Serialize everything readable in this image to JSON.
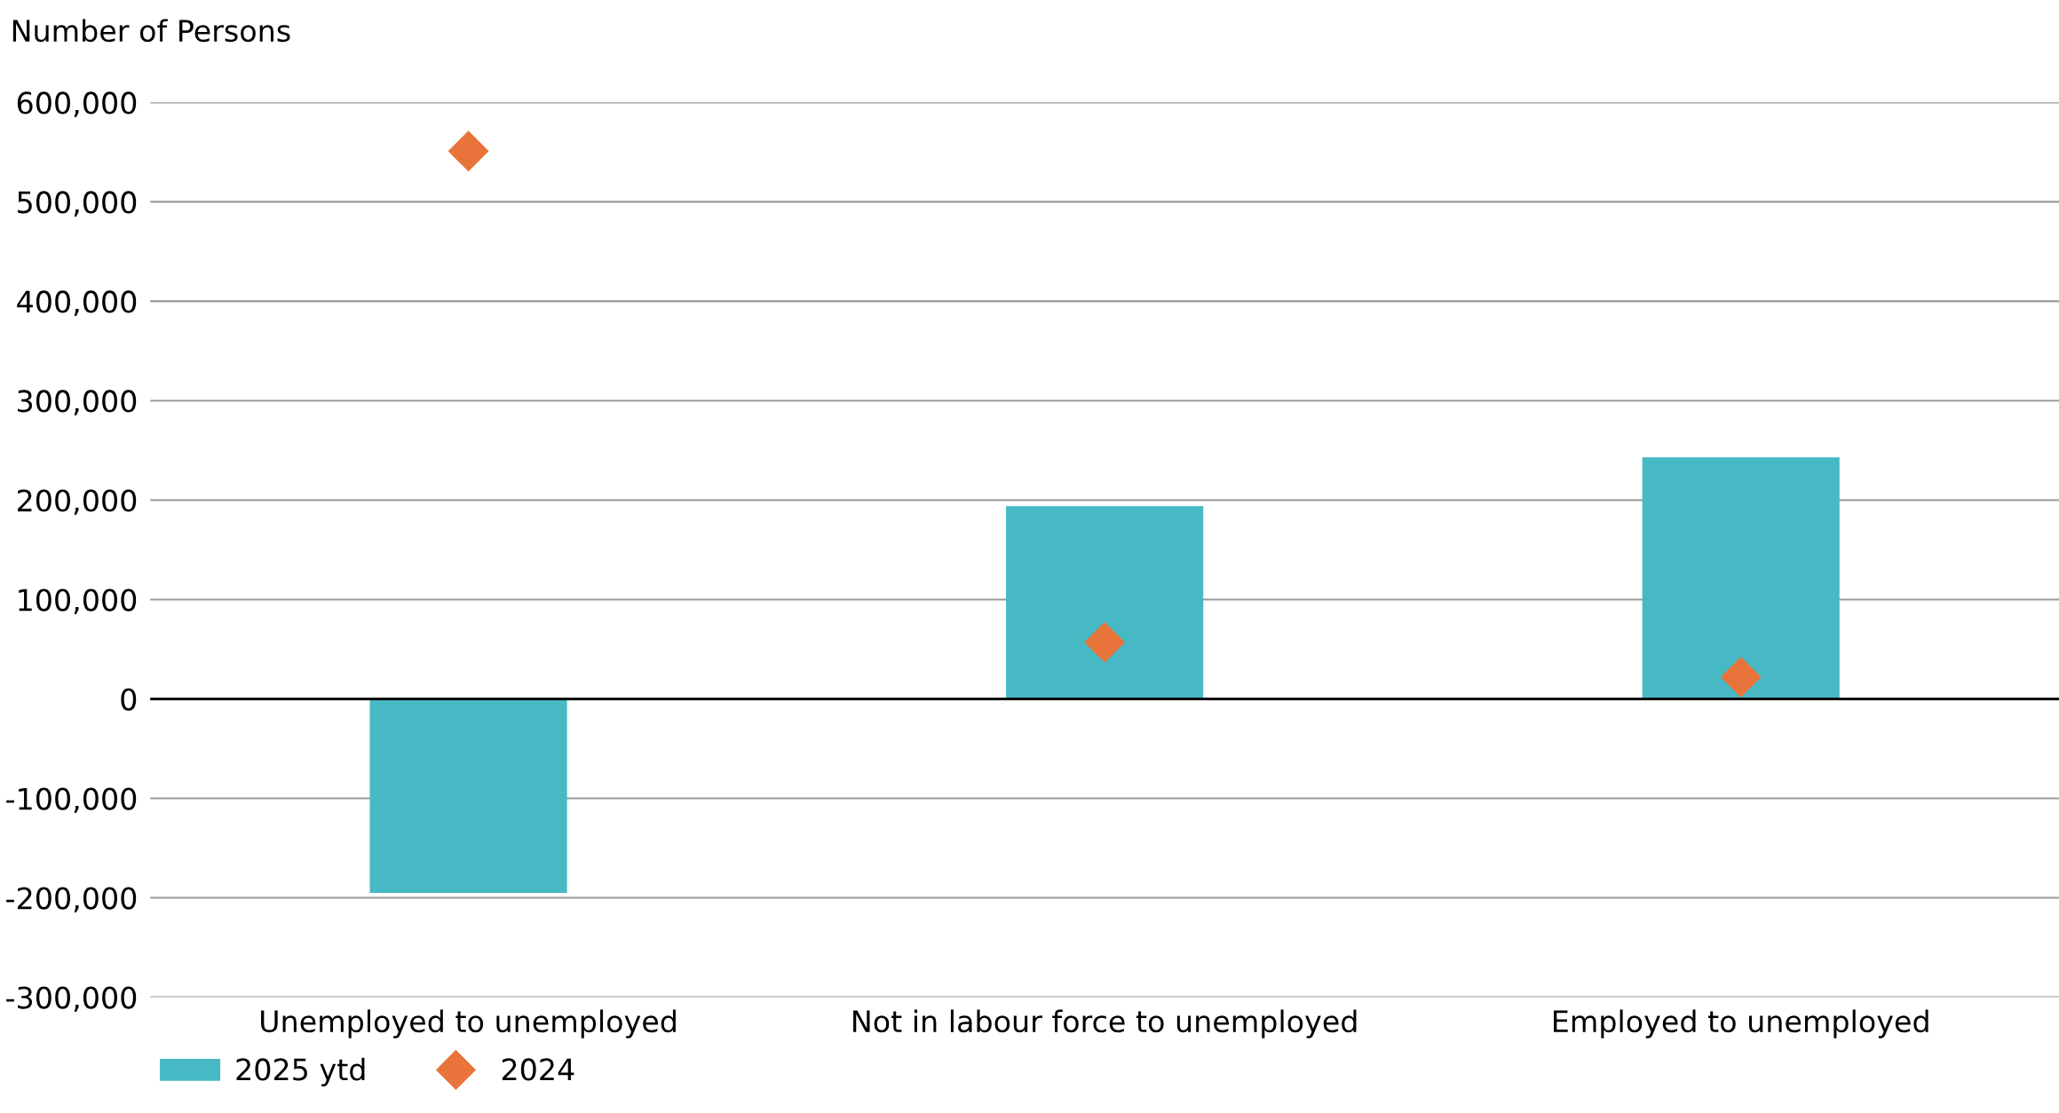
{
  "chart_data": {
    "type": "bar",
    "ylabel": "Number of Persons",
    "categories": [
      "Unemployed to unemployed",
      "Not in labour force to unemployed",
      "Employed to unemployed"
    ],
    "series": [
      {
        "name": "2025 ytd",
        "color": "#46b9c4",
        "values": [
          -195000,
          194000,
          243000
        ]
      },
      {
        "name": "2024",
        "type": "scatter",
        "color": "#e8743b",
        "marker": "diamond",
        "values": [
          551000,
          57000,
          22000
        ]
      }
    ],
    "ylim": [
      -300000,
      600000
    ],
    "yticks": [
      {
        "value": -300000,
        "label": "-300,000"
      },
      {
        "value": -200000,
        "label": "-200,000"
      },
      {
        "value": -100000,
        "label": "-100,000"
      },
      0,
      {
        "value": 100000,
        "label": "100,000"
      },
      {
        "value": 200000,
        "label": "200,000"
      },
      {
        "value": 300000,
        "label": "300,000"
      },
      {
        "value": 400000,
        "label": "400,000"
      },
      {
        "value": 500000,
        "label": "500,000"
      },
      {
        "value": 600000,
        "label": "600,000"
      }
    ],
    "grid": "y",
    "legend": "bottom left"
  }
}
